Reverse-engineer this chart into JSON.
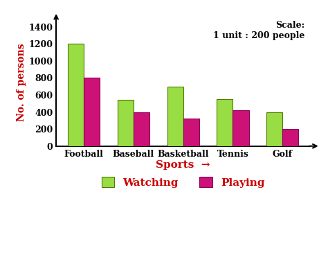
{
  "categories": [
    "Football",
    "Baseball",
    "Basketball",
    "Tennis",
    "Golf"
  ],
  "watching": [
    1200,
    540,
    700,
    550,
    400
  ],
  "playing": [
    800,
    400,
    320,
    420,
    200
  ],
  "watching_color": "#99dd44",
  "playing_color": "#cc1177",
  "watching_edge": "#557700",
  "playing_edge": "#880055",
  "ylabel": "No. of persons",
  "xlabel": "Sports",
  "ylabel_color": "#cc0000",
  "xlabel_color": "#cc0000",
  "scale_text": "Scale:\n1 unit : 200 people",
  "ylim": [
    0,
    1500
  ],
  "yticks": [
    0,
    200,
    400,
    600,
    800,
    1000,
    1200,
    1400
  ],
  "bar_width": 0.32,
  "legend_watching": "Watching",
  "legend_playing": "Playing",
  "background_color": "#ffffff"
}
